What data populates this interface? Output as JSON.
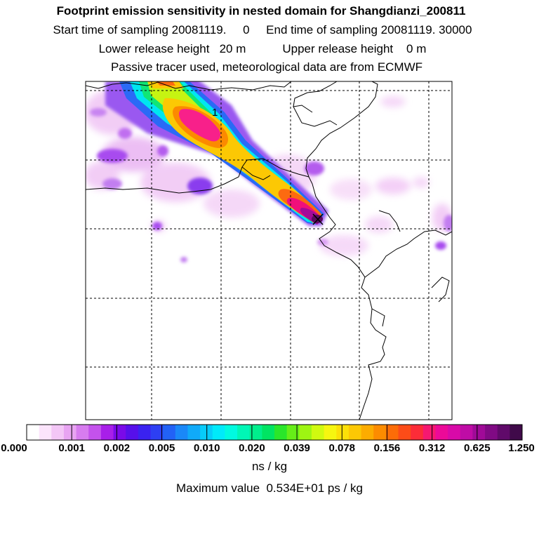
{
  "header": {
    "title": "Footprint emission sensitivity in nested domain for Shangdianzi_200811",
    "sampling_line": "Start time of sampling 20081119.     0     End time of sampling 20081119. 30000",
    "release_line": "Lower release height   20 m           Upper release height    0 m",
    "tracer_line": "Passive tracer used, meteorological data are from ECMWF"
  },
  "map": {
    "station_marker": "Shangdianzi",
    "contour_label": "1"
  },
  "colorbar": {
    "tick_labels": [
      "0.000",
      "0.001",
      "0.002",
      "0.005",
      "0.010",
      "0.020",
      "0.039",
      "0.078",
      "0.156",
      "0.312",
      "0.625",
      "1.250"
    ],
    "colors": [
      "#ffffff",
      "#fbe4fb",
      "#f3c6f6",
      "#e8a4f2",
      "#d77cef",
      "#c452ec",
      "#a81fe9",
      "#7a0ae8",
      "#5610ea",
      "#3a22f0",
      "#2d3ff3",
      "#2262f6",
      "#1a88f8",
      "#10aaf9",
      "#07ccfa",
      "#00eafa",
      "#00fae0",
      "#00f6b6",
      "#00ee8c",
      "#00e462",
      "#2ae62a",
      "#66ee18",
      "#9ef512",
      "#d0fa10",
      "#f6f610",
      "#fce008",
      "#fcc804",
      "#fcac00",
      "#fc8c00",
      "#fc6c08",
      "#fc4c18",
      "#fc2c38",
      "#f61870",
      "#ec0a98",
      "#d80aa8",
      "#bf0ca6",
      "#a00a98",
      "#800a84",
      "#600a6a",
      "#400a4a"
    ],
    "units": "ns / kg",
    "max_value": "Maximum value  0.534E+01 ps / kg"
  }
}
